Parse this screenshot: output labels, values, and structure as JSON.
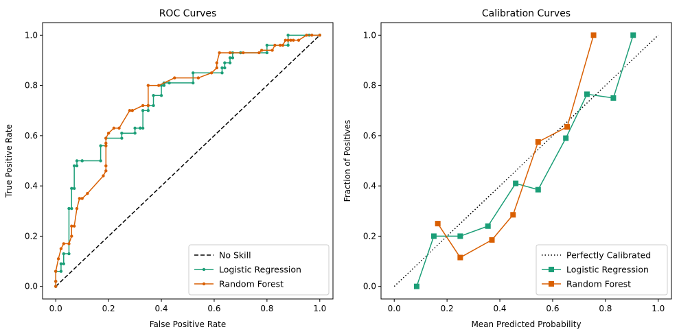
{
  "colors": {
    "logistic": "#1b9e77",
    "forest": "#d95f02",
    "reference": "#000000"
  },
  "chart_data": [
    {
      "type": "line",
      "title": "ROC Curves",
      "xlabel": "False Positive Rate",
      "ylabel": "True Positive Rate",
      "xlim": [
        -0.05,
        1.05
      ],
      "ylim": [
        -0.05,
        1.05
      ],
      "xticks": [
        "0.0",
        "0.2",
        "0.4",
        "0.6",
        "0.8",
        "1.0"
      ],
      "yticks": [
        "0.0",
        "0.2",
        "0.4",
        "0.6",
        "0.8",
        "1.0"
      ],
      "legend": "bottom-right",
      "grid": false,
      "series": [
        {
          "name": "No Skill",
          "style": "dashed",
          "marker": "none",
          "color_key": "reference",
          "x": [
            0,
            1
          ],
          "y": [
            0,
            1
          ]
        },
        {
          "name": "Logistic Regression",
          "style": "solid",
          "marker": "circle",
          "color_key": "logistic",
          "x": [
            0,
            0,
            0,
            0.02,
            0.02,
            0.03,
            0.03,
            0.05,
            0.05,
            0.06,
            0.06,
            0.07,
            0.07,
            0.08,
            0.08,
            0.1,
            0.1,
            0.17,
            0.17,
            0.19,
            0.19,
            0.25,
            0.25,
            0.3,
            0.3,
            0.32,
            0.32,
            0.33,
            0.33,
            0.35,
            0.35,
            0.37,
            0.37,
            0.4,
            0.4,
            0.41,
            0.41,
            0.43,
            0.43,
            0.52,
            0.52,
            0.63,
            0.63,
            0.64,
            0.64,
            0.66,
            0.66,
            0.67,
            0.67,
            0.7,
            0.7,
            0.8,
            0.8,
            0.88,
            0.88,
            0.96,
            1.0
          ],
          "y": [
            0,
            0.02,
            0.06,
            0.06,
            0.09,
            0.09,
            0.13,
            0.13,
            0.31,
            0.31,
            0.39,
            0.39,
            0.48,
            0.48,
            0.5,
            0.5,
            0.5,
            0.5,
            0.56,
            0.56,
            0.59,
            0.59,
            0.61,
            0.61,
            0.63,
            0.63,
            0.63,
            0.63,
            0.7,
            0.7,
            0.72,
            0.72,
            0.76,
            0.76,
            0.8,
            0.8,
            0.81,
            0.81,
            0.81,
            0.81,
            0.85,
            0.85,
            0.87,
            0.87,
            0.89,
            0.89,
            0.91,
            0.91,
            0.93,
            0.93,
            0.93,
            0.93,
            0.96,
            0.96,
            1.0,
            1.0,
            1.0
          ]
        },
        {
          "name": "Random Forest",
          "style": "solid",
          "marker": "circle",
          "color_key": "forest",
          "x": [
            0,
            0,
            0,
            0.01,
            0.02,
            0.03,
            0.05,
            0.06,
            0.06,
            0.07,
            0.08,
            0.09,
            0.1,
            0.12,
            0.18,
            0.19,
            0.19,
            0.19,
            0.19,
            0.19,
            0.2,
            0.22,
            0.24,
            0.28,
            0.29,
            0.33,
            0.35,
            0.35,
            0.39,
            0.45,
            0.54,
            0.59,
            0.61,
            0.61,
            0.62,
            0.66,
            0.71,
            0.77,
            0.78,
            0.82,
            0.83,
            0.85,
            0.86,
            0.87,
            0.88,
            0.89,
            0.9,
            0.92,
            0.95,
            0.97,
            1.0
          ],
          "y": [
            0,
            0.02,
            0.06,
            0.11,
            0.15,
            0.17,
            0.17,
            0.2,
            0.24,
            0.24,
            0.31,
            0.35,
            0.35,
            0.37,
            0.44,
            0.46,
            0.48,
            0.56,
            0.57,
            0.59,
            0.61,
            0.63,
            0.63,
            0.7,
            0.7,
            0.72,
            0.72,
            0.8,
            0.8,
            0.83,
            0.83,
            0.85,
            0.87,
            0.89,
            0.93,
            0.93,
            0.93,
            0.93,
            0.94,
            0.94,
            0.96,
            0.96,
            0.96,
            0.98,
            0.98,
            0.98,
            0.98,
            0.98,
            1.0,
            1.0,
            1.0
          ]
        }
      ]
    },
    {
      "type": "line",
      "title": "Calibration Curves",
      "xlabel": "Mean Predicted Probability",
      "ylabel": "Fraction of Positives",
      "xlim": [
        -0.05,
        1.05
      ],
      "ylim": [
        -0.05,
        1.05
      ],
      "xticks": [
        "0.0",
        "0.2",
        "0.4",
        "0.6",
        "0.8",
        "1.0"
      ],
      "yticks": [
        "0.0",
        "0.2",
        "0.4",
        "0.6",
        "0.8",
        "1.0"
      ],
      "legend": "bottom-right",
      "grid": false,
      "series": [
        {
          "name": "Perfectly Calibrated",
          "style": "dotted",
          "marker": "none",
          "color_key": "reference",
          "x": [
            0,
            1
          ],
          "y": [
            0,
            1
          ]
        },
        {
          "name": "Logistic Regression",
          "style": "solid",
          "marker": "square",
          "color_key": "logistic",
          "x": [
            0.085,
            0.15,
            0.25,
            0.355,
            0.46,
            0.545,
            0.65,
            0.73,
            0.83,
            0.905
          ],
          "y": [
            0.0,
            0.2,
            0.2,
            0.24,
            0.41,
            0.385,
            0.59,
            0.765,
            0.75,
            1.0
          ]
        },
        {
          "name": "Random Forest",
          "style": "solid",
          "marker": "square",
          "color_key": "forest",
          "x": [
            0.165,
            0.25,
            0.37,
            0.45,
            0.545,
            0.655,
            0.755
          ],
          "y": [
            0.25,
            0.115,
            0.185,
            0.285,
            0.575,
            0.635,
            1.0
          ]
        }
      ]
    }
  ]
}
